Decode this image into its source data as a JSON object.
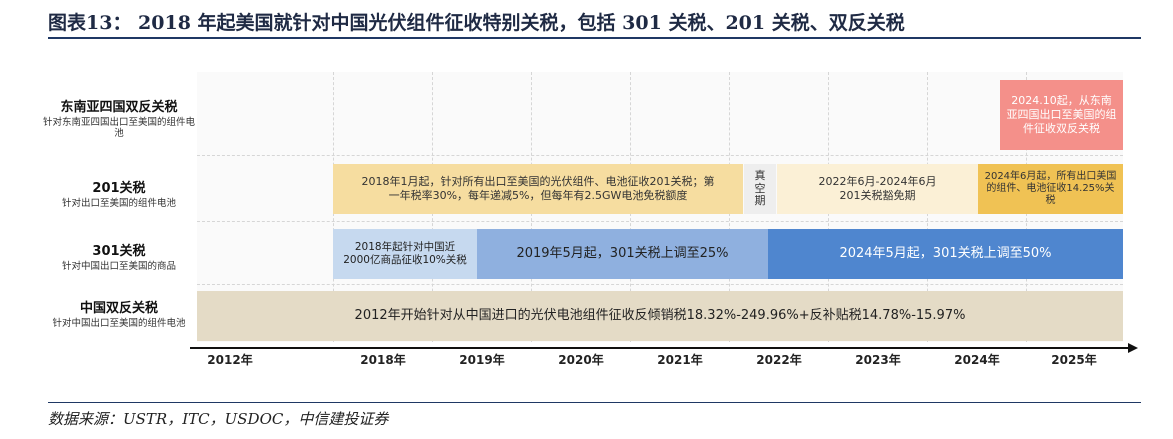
{
  "header": {
    "title": "图表13：  2018 年起美国就针对中国光伏组件征收特别关税，包括 301 关税、201 关税、双反关税"
  },
  "rows": [
    {
      "id": "sea",
      "name": "东南亚四国双反关税",
      "note": "针对东南亚四国出口至美国的组件电池"
    },
    {
      "id": "s201",
      "name": "201关税",
      "note": "针对出口至美国的组件电池"
    },
    {
      "id": "s301",
      "name": "301关税",
      "note": "针对中国出口至美国的商品"
    },
    {
      "id": "cn",
      "name": "中国双反关税",
      "note": "针对中国出口至美国的组件电池"
    }
  ],
  "bars": {
    "sea_2024": "2024.10起，从东南亚四国出口至美国的组件征收双反关税",
    "s201_2018": "2018年1月起，针对所有出口至美国的光伏组件、电池征收201关税；第一年税率30%，每年递减5%，但每年有2.5GW电池免税额度",
    "s201_vacuum": "真空期",
    "s201_exempt": "2022年6月-2024年6月 201关税豁免期",
    "s201_2024": "2024年6月起，所有出口美国的组件、电池征收14.25%关税",
    "s301_2018": "2018年起针对中国近2000亿商品征收10%关税",
    "s301_2019": "2019年5月起，301关税上调至25%",
    "s301_2024": "2024年5月起，301关税上调至50%",
    "cn_2012": "2012年开始针对从中国进口的光伏电池组件征收反倾销税18.32%-249.96%+反补贴税14.78%-15.97%"
  },
  "axis": {
    "ticks": [
      "2012年",
      "2018年",
      "2019年",
      "2020年",
      "2021年",
      "2022年",
      "2023年",
      "2024年",
      "2025年"
    ]
  },
  "colors": {
    "title_rule": "#1f3864",
    "sea_bar": "#f4908a",
    "s201_main": "#f6dda0",
    "s201_vacuum": "#eeeeee",
    "s201_exempt": "#fbf0d6",
    "s201_2024": "#f0c254",
    "s301_light": "#c6d9ef",
    "s301_mid": "#8fb0df",
    "s301_dark": "#4f86cf",
    "cn_bar": "#e4dbc6"
  },
  "footer": {
    "source": "数据来源：USTR，ITC，USDOC，中信建投证券"
  }
}
